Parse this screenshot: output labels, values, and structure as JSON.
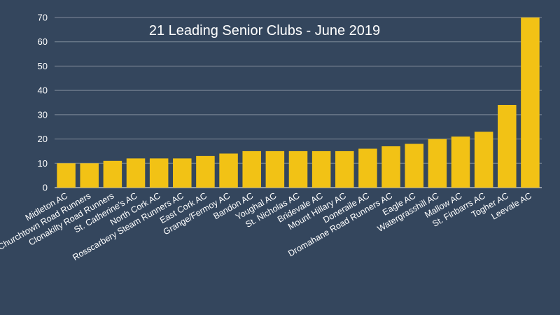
{
  "chart_data": {
    "type": "bar",
    "title": "21 Leading Senior Clubs - June 2019",
    "xlabel": "",
    "ylabel": "",
    "ylim": [
      0,
      70
    ],
    "yticks": [
      0,
      10,
      20,
      30,
      40,
      50,
      60,
      70
    ],
    "grid": true,
    "legend": "none",
    "categories": [
      "Midleton AC",
      "Churchtown Road Runners",
      "Clonakilty Road Runners",
      "St. Catherine's AC",
      "North Cork AC",
      "Rosscarbery Steam Runners AC",
      "East Cork AC",
      "Grange/Fermoy AC",
      "Bandon AC",
      "Youghal AC",
      "St. Nicholas AC",
      "Bridevale AC",
      "Mount Hillary AC",
      "Doneraile AC",
      "Dromahane Road Runners AC",
      "Eagle AC",
      "Watergrasshill AC",
      "Mallow AC",
      "St. Finbarrs AC",
      "Togher AC",
      "Leevale AC"
    ],
    "values": [
      10,
      10,
      11,
      12,
      12,
      12,
      13,
      14,
      15,
      15,
      15,
      15,
      15,
      16,
      17,
      18,
      20,
      21,
      23,
      34,
      70
    ],
    "colors": {
      "background": "#34465d",
      "bar": "#f2c215",
      "text": "#ffffff",
      "grid": "#7f8b9a"
    }
  }
}
